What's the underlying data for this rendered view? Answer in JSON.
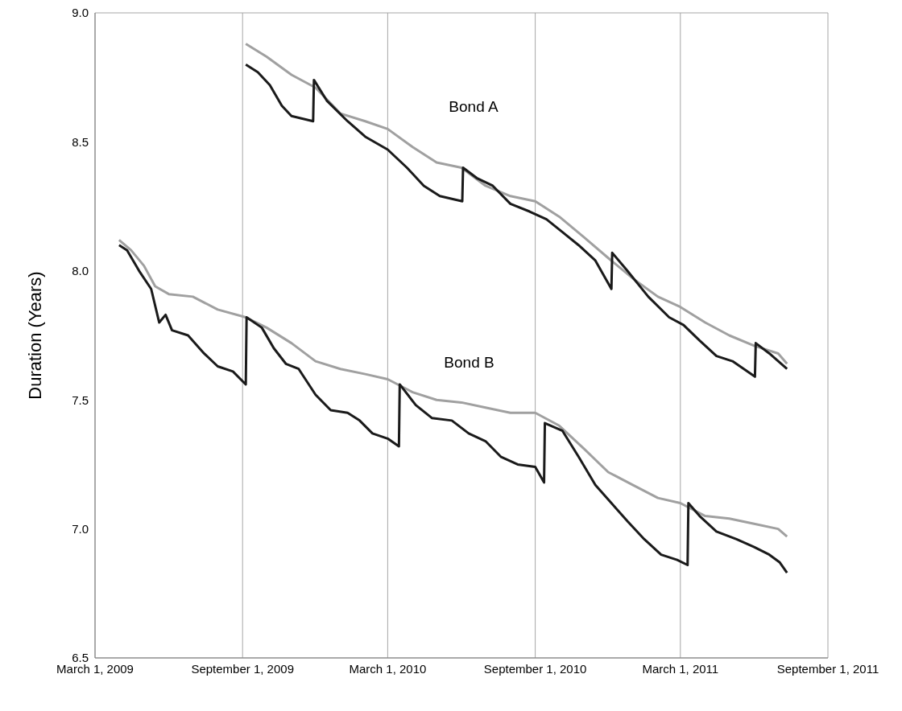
{
  "chart_data": {
    "type": "line",
    "ylabel": "Duration (Years)",
    "xlim": [
      "2009-03-01",
      "2011-09-01"
    ],
    "xticks": [
      {
        "value": "2009-03-01",
        "label": "March 1, 2009"
      },
      {
        "value": "2009-09-01",
        "label": "September 1, 2009"
      },
      {
        "value": "2010-03-01",
        "label": "March 1, 2010"
      },
      {
        "value": "2010-09-01",
        "label": "September 1, 2010"
      },
      {
        "value": "2011-03-01",
        "label": "March 1, 2011"
      },
      {
        "value": "2011-09-01",
        "label": "September 1, 2011"
      }
    ],
    "ylim": [
      6.5,
      9.0
    ],
    "yticks": [
      {
        "value": 6.5,
        "label": "6.5"
      },
      {
        "value": 7.0,
        "label": "7.0"
      },
      {
        "value": 7.5,
        "label": "7.5"
      },
      {
        "value": 8.0,
        "label": "8.0"
      },
      {
        "value": 8.5,
        "label": "8.5"
      },
      {
        "value": 9.0,
        "label": "9.0"
      }
    ],
    "grid": true,
    "legend": false,
    "marker": "none",
    "line_style": "solid",
    "annotations": [
      "Bond A",
      "Bond B"
    ],
    "series": [
      {
        "color": "#a0a0a0",
        "x": [
          "2009-09-05",
          "2009-10-01",
          "2009-11-01",
          "2009-12-01",
          "2010-01-01",
          "2010-02-01",
          "2010-03-01",
          "2010-04-01",
          "2010-05-01",
          "2010-06-01",
          "2010-07-01",
          "2010-08-01",
          "2010-09-01",
          "2010-10-01",
          "2010-11-01",
          "2010-12-01",
          "2011-01-01",
          "2011-02-01",
          "2011-03-01",
          "2011-04-01",
          "2011-05-01",
          "2011-06-01",
          "2011-07-01",
          "2011-07-12"
        ],
        "values": [
          8.88,
          8.83,
          8.76,
          8.71,
          8.61,
          8.58,
          8.55,
          8.48,
          8.42,
          8.4,
          8.33,
          8.29,
          8.27,
          8.21,
          8.13,
          8.05,
          7.97,
          7.9,
          7.86,
          7.8,
          7.75,
          7.71,
          7.68,
          7.64
        ]
      },
      {
        "color": "#1a1a1a",
        "x": [
          "2009-09-05",
          "2009-09-20",
          "2009-10-05",
          "2009-10-20",
          "2009-11-01",
          "2009-11-28",
          "2009-11-29",
          "2009-12-15",
          "2010-01-10",
          "2010-02-01",
          "2010-03-01",
          "2010-03-25",
          "2010-04-15",
          "2010-05-05",
          "2010-06-02",
          "2010-06-03",
          "2010-06-20",
          "2010-07-10",
          "2010-08-01",
          "2010-08-25",
          "2010-09-15",
          "2010-10-05",
          "2010-10-25",
          "2010-11-15",
          "2010-12-05",
          "2010-12-06",
          "2010-12-25",
          "2011-01-20",
          "2011-02-15",
          "2011-03-05",
          "2011-03-25",
          "2011-04-15",
          "2011-05-05",
          "2011-06-02",
          "2011-06-03",
          "2011-06-20",
          "2011-07-12"
        ],
        "values": [
          8.8,
          8.77,
          8.72,
          8.64,
          8.6,
          8.58,
          8.74,
          8.66,
          8.58,
          8.52,
          8.47,
          8.4,
          8.33,
          8.29,
          8.27,
          8.4,
          8.36,
          8.33,
          8.26,
          8.23,
          8.2,
          8.15,
          8.1,
          8.04,
          7.93,
          8.07,
          8.0,
          7.9,
          7.82,
          7.79,
          7.73,
          7.67,
          7.65,
          7.59,
          7.72,
          7.68,
          7.62
        ]
      },
      {
        "color": "#a0a0a0",
        "x": [
          "2009-03-31",
          "2009-04-15",
          "2009-05-01",
          "2009-05-15",
          "2009-06-01",
          "2009-07-01",
          "2009-08-01",
          "2009-09-05",
          "2009-10-01",
          "2009-11-01",
          "2009-12-01",
          "2010-01-01",
          "2010-02-01",
          "2010-03-01",
          "2010-04-01",
          "2010-05-01",
          "2010-06-01",
          "2010-07-01",
          "2010-08-01",
          "2010-09-01",
          "2010-10-01",
          "2010-11-01",
          "2010-12-01",
          "2011-01-01",
          "2011-02-01",
          "2011-03-01",
          "2011-04-01",
          "2011-05-01",
          "2011-06-01",
          "2011-07-01",
          "2011-07-12"
        ],
        "values": [
          8.12,
          8.08,
          8.02,
          7.94,
          7.91,
          7.9,
          7.85,
          7.82,
          7.78,
          7.72,
          7.65,
          7.62,
          7.6,
          7.58,
          7.53,
          7.5,
          7.49,
          7.47,
          7.45,
          7.45,
          7.4,
          7.31,
          7.22,
          7.17,
          7.12,
          7.1,
          7.05,
          7.04,
          7.02,
          7.0,
          6.97
        ]
      },
      {
        "color": "#1a1a1a",
        "x": [
          "2009-03-31",
          "2009-04-10",
          "2009-04-25",
          "2009-05-10",
          "2009-05-20",
          "2009-05-28",
          "2009-06-05",
          "2009-06-25",
          "2009-07-15",
          "2009-08-01",
          "2009-08-20",
          "2009-09-05",
          "2009-09-06",
          "2009-09-25",
          "2009-10-10",
          "2009-10-25",
          "2009-11-10",
          "2009-12-01",
          "2009-12-20",
          "2010-01-10",
          "2010-01-25",
          "2010-02-10",
          "2010-03-01",
          "2010-03-15",
          "2010-03-16",
          "2010-04-05",
          "2010-04-25",
          "2010-05-20",
          "2010-06-10",
          "2010-07-01",
          "2010-07-20",
          "2010-08-10",
          "2010-09-01",
          "2010-09-12",
          "2010-09-13",
          "2010-10-05",
          "2010-10-25",
          "2010-11-15",
          "2010-12-05",
          "2010-12-25",
          "2011-01-15",
          "2011-02-05",
          "2011-02-25",
          "2011-03-10",
          "2011-03-11",
          "2011-03-25",
          "2011-04-15",
          "2011-05-10",
          "2011-06-01",
          "2011-06-20",
          "2011-07-03",
          "2011-07-12"
        ],
        "values": [
          8.1,
          8.08,
          8.0,
          7.93,
          7.8,
          7.83,
          7.77,
          7.75,
          7.68,
          7.63,
          7.61,
          7.56,
          7.82,
          7.78,
          7.7,
          7.64,
          7.62,
          7.52,
          7.46,
          7.45,
          7.42,
          7.37,
          7.35,
          7.32,
          7.56,
          7.48,
          7.43,
          7.42,
          7.37,
          7.34,
          7.28,
          7.25,
          7.24,
          7.18,
          7.41,
          7.38,
          7.28,
          7.17,
          7.1,
          7.03,
          6.96,
          6.9,
          6.88,
          6.86,
          7.1,
          7.05,
          6.99,
          6.96,
          6.93,
          6.9,
          6.87,
          6.83
        ]
      }
    ]
  }
}
